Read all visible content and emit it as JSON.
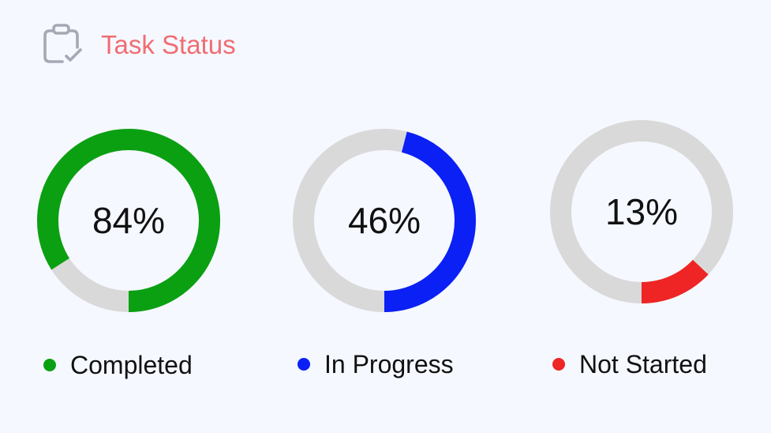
{
  "header": {
    "title": "Task Status",
    "icon": "clipboard-check-icon"
  },
  "chart_data": {
    "type": "donut",
    "track_color": "#d9d9d9",
    "series": [
      {
        "name": "Completed",
        "value": 84,
        "label": "84%",
        "color": "#0aa012"
      },
      {
        "name": "In Progress",
        "value": 46,
        "label": "46%",
        "color": "#0a20f5"
      },
      {
        "name": "Not Started",
        "value": 13,
        "label": "13%",
        "color": "#ef2424"
      }
    ]
  }
}
